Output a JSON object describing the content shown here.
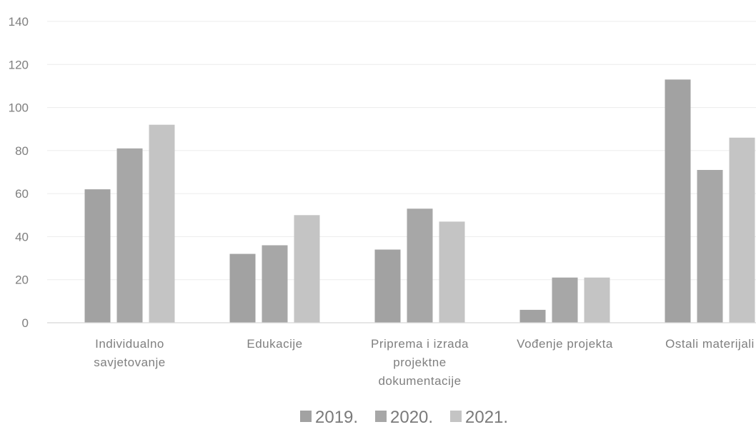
{
  "chart_data": {
    "type": "bar",
    "categories": [
      [
        "Individualno",
        "savjetovanje"
      ],
      [
        "Edukacije"
      ],
      [
        "Priprema i izrada",
        "projektne",
        "dokumentacije"
      ],
      [
        "Vođenje projekta"
      ],
      [
        "Ostali materijali"
      ]
    ],
    "series": [
      {
        "name": "2019.",
        "color": "#a2a2a2",
        "values": [
          62,
          32,
          34,
          6,
          113
        ]
      },
      {
        "name": "2020.",
        "color": "#a7a7a7",
        "values": [
          81,
          36,
          53,
          21,
          71
        ]
      },
      {
        "name": "2021.",
        "color": "#c4c4c4",
        "values": [
          92,
          50,
          47,
          21,
          86
        ]
      }
    ],
    "ylim": [
      0,
      140
    ],
    "yticks": [
      0,
      20,
      40,
      60,
      80,
      100,
      120,
      140
    ],
    "grid": true,
    "legend_position": "bottom",
    "title": "",
    "xlabel": "",
    "ylabel": ""
  }
}
